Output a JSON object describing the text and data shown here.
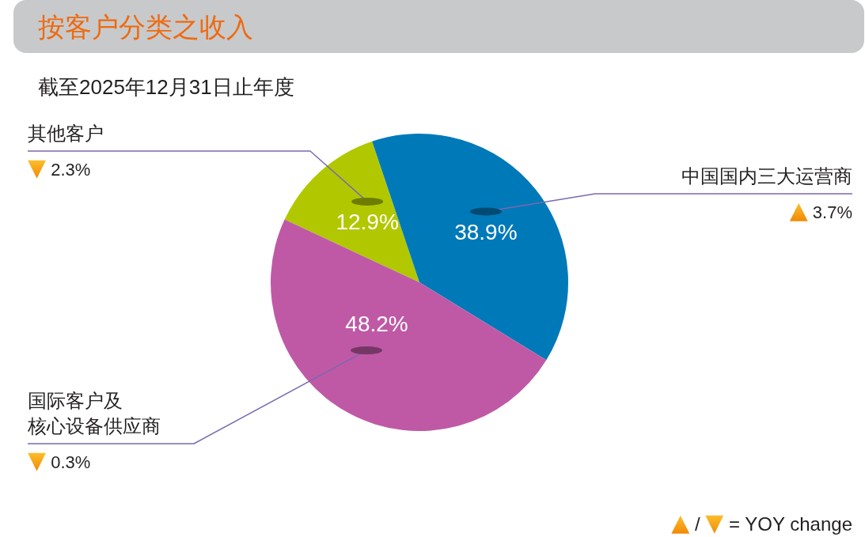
{
  "chart_data": {
    "type": "pie",
    "title": "按客户分类之收入",
    "subtitle": "截至2025年12月31日止年度",
    "categories": [
      "其他客户",
      "中国国内三大运营商",
      "国际客户及核心设备供应商"
    ],
    "values": [
      12.9,
      38.9,
      48.2
    ],
    "colors": [
      "#b1c800",
      "#0079b9",
      "#bf59a6"
    ],
    "value_labels": [
      "12.9%",
      "38.9%",
      "48.2%"
    ],
    "annotations": [
      "▼ 2.3%",
      "▲ 3.7%",
      "▼ 0.3%",
      "▲ / ▼ = YOY change"
    ]
  }
}
